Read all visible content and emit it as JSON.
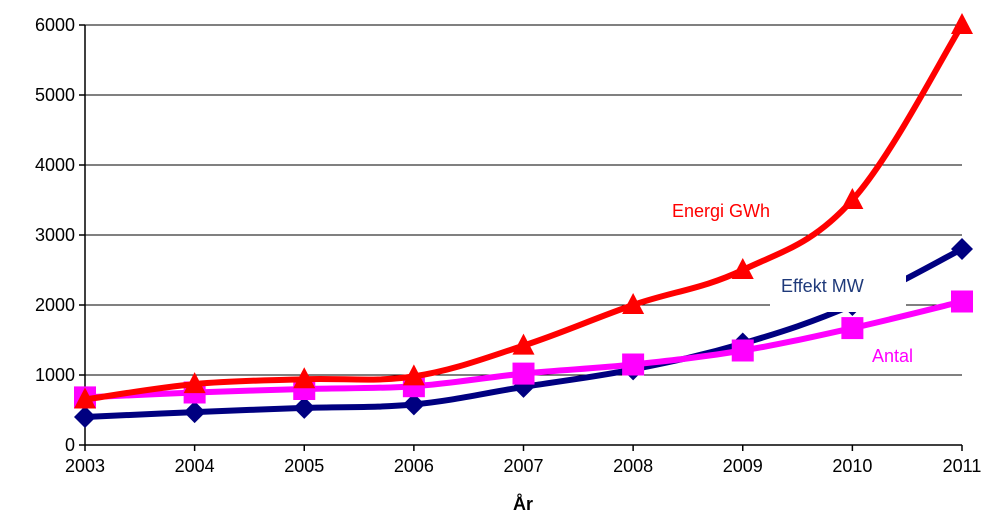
{
  "chart_data": {
    "type": "line",
    "title": "",
    "xlabel": "År",
    "ylabel": "",
    "x": [
      2003,
      2004,
      2005,
      2006,
      2007,
      2008,
      2009,
      2010,
      2011
    ],
    "xlim": [
      2003,
      2011
    ],
    "ylim": [
      0,
      6000
    ],
    "yticks": [
      0,
      1000,
      2000,
      3000,
      4000,
      5000,
      6000
    ],
    "grid": "horizontal",
    "legend": "inline labels",
    "series": [
      {
        "name": "Energi GWh",
        "color": "#ff0000",
        "marker": "triangle",
        "values": [
          650,
          870,
          940,
          980,
          1420,
          2000,
          2500,
          3500,
          6000
        ]
      },
      {
        "name": "Effekt MW",
        "color": "#000080",
        "marker": "diamond",
        "values": [
          400,
          470,
          530,
          580,
          830,
          1080,
          1450,
          2000,
          2800
        ]
      },
      {
        "name": "Antal",
        "color": "#ff00ff",
        "marker": "square",
        "values": [
          680,
          750,
          800,
          840,
          1020,
          1150,
          1350,
          1670,
          2050
        ]
      }
    ]
  }
}
